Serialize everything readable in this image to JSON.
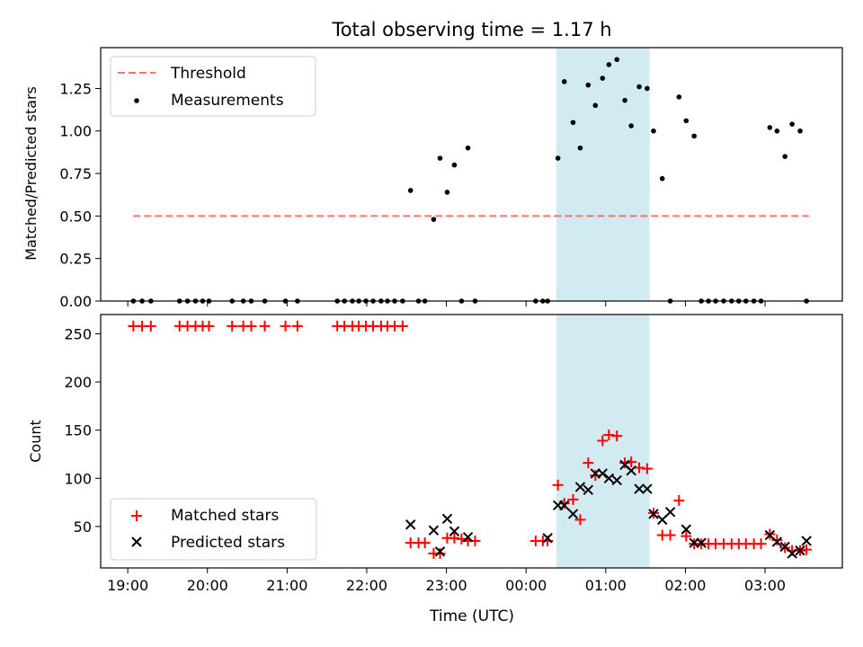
{
  "title": "Total observing time = 1.17 h",
  "xlabel": "Time (UTC)",
  "x_ticks": [
    "19:00",
    "20:00",
    "21:00",
    "22:00",
    "23:00",
    "00:00",
    "01:00",
    "02:00",
    "03:00"
  ],
  "x_tick_hours": [
    0,
    1,
    2,
    3,
    4,
    5,
    6,
    7,
    8
  ],
  "x_origin": "19:00",
  "x_range_hours": [
    -0.34,
    8.97
  ],
  "highlight_range_hours": [
    5.38,
    6.55
  ],
  "highlight_color": "#add8e6",
  "chart_data": [
    {
      "type": "scatter",
      "ylabel": "Matched/Predicted stars",
      "ylim": [
        0,
        1.49
      ],
      "y_ticks": [
        "0.00",
        "0.25",
        "0.50",
        "0.75",
        "1.00",
        "1.25"
      ],
      "y_tick_values": [
        0,
        0.25,
        0.5,
        0.75,
        1.0,
        1.25
      ],
      "legend_position": "top-left",
      "threshold": {
        "name": "Threshold",
        "value": 0.5,
        "x_range": [
          0.07,
          8.55
        ],
        "color": "#ff7070",
        "style": "dashed"
      },
      "series": [
        {
          "name": "Measurements",
          "color": "#000000",
          "x": [
            0.07,
            0.18,
            0.29,
            0.65,
            0.75,
            0.85,
            0.94,
            1.02,
            1.31,
            1.45,
            1.55,
            1.72,
            1.98,
            2.13,
            2.63,
            2.72,
            2.82,
            2.9,
            2.99,
            3.08,
            3.18,
            3.26,
            3.35,
            3.45,
            3.55,
            3.65,
            3.73,
            3.84,
            3.92,
            4.01,
            4.1,
            4.19,
            4.27,
            4.36,
            5.12,
            5.21,
            5.27,
            5.4,
            5.48,
            5.59,
            5.68,
            5.78,
            5.87,
            5.96,
            6.04,
            6.14,
            6.24,
            6.32,
            6.42,
            6.52,
            6.6,
            6.71,
            6.81,
            6.92,
            7.01,
            7.11,
            7.2,
            7.29,
            7.38,
            7.48,
            7.58,
            7.67,
            7.76,
            7.86,
            7.95,
            8.06,
            8.15,
            8.25,
            8.34,
            8.44,
            8.52
          ],
          "y": [
            0,
            0,
            0,
            0,
            0,
            0,
            0,
            0,
            0,
            0,
            0,
            0,
            0,
            0,
            0,
            0,
            0,
            0,
            0,
            0,
            0,
            0,
            0,
            0,
            0.65,
            0,
            0,
            0.48,
            0.84,
            0.64,
            0.8,
            0,
            0.9,
            0,
            0,
            0,
            0,
            0.84,
            1.29,
            1.05,
            0.9,
            1.27,
            1.15,
            1.31,
            1.39,
            1.42,
            1.18,
            1.03,
            1.26,
            1.25,
            1.0,
            0.72,
            0,
            1.2,
            1.06,
            0.97,
            0,
            0,
            0,
            0,
            0,
            0,
            0,
            0,
            0,
            1.02,
            1.0,
            0.85,
            1.04,
            1.0,
            0
          ]
        }
      ]
    },
    {
      "type": "scatter",
      "ylabel": "Count",
      "ylim": [
        7,
        270
      ],
      "y_ticks": [
        "50",
        "100",
        "150",
        "200",
        "250"
      ],
      "y_tick_values": [
        50,
        100,
        150,
        200,
        250
      ],
      "legend_position": "bottom-left",
      "series": [
        {
          "name": "Matched stars",
          "marker": "plus",
          "color": "#ff0000",
          "x": [
            0.07,
            0.18,
            0.29,
            0.65,
            0.75,
            0.85,
            0.94,
            1.02,
            1.31,
            1.45,
            1.55,
            1.72,
            1.98,
            2.13,
            2.63,
            2.72,
            2.82,
            2.9,
            2.99,
            3.08,
            3.18,
            3.26,
            3.35,
            3.45,
            3.55,
            3.65,
            3.73,
            3.84,
            3.92,
            4.01,
            4.1,
            4.19,
            4.27,
            4.36,
            5.12,
            5.21,
            5.27,
            5.4,
            5.48,
            5.59,
            5.68,
            5.78,
            5.87,
            5.96,
            6.04,
            6.14,
            6.24,
            6.32,
            6.42,
            6.52,
            6.6,
            6.71,
            6.81,
            6.92,
            7.01,
            7.11,
            7.2,
            7.29,
            7.38,
            7.48,
            7.58,
            7.67,
            7.76,
            7.86,
            7.95,
            8.06,
            8.15,
            8.25,
            8.34,
            8.44,
            8.52
          ],
          "y": [
            258,
            258,
            258,
            258,
            258,
            258,
            258,
            258,
            258,
            258,
            258,
            258,
            258,
            258,
            258,
            258,
            258,
            258,
            258,
            258,
            258,
            258,
            258,
            258,
            33,
            33,
            33,
            22,
            22,
            38,
            38,
            37,
            35,
            35,
            35,
            35,
            35,
            93,
            74,
            78,
            57,
            116,
            103,
            139,
            145,
            144,
            116,
            117,
            111,
            110,
            64,
            41,
            41,
            77,
            40,
            32,
            32,
            32,
            32,
            32,
            32,
            32,
            32,
            32,
            32,
            42,
            36,
            28,
            25,
            25,
            26
          ]
        },
        {
          "name": "Predicted stars",
          "marker": "x",
          "color": "#000000",
          "x": [
            3.55,
            3.84,
            3.92,
            4.01,
            4.1,
            4.27,
            5.27,
            5.4,
            5.48,
            5.59,
            5.68,
            5.78,
            5.87,
            5.96,
            6.04,
            6.14,
            6.24,
            6.32,
            6.42,
            6.52,
            6.6,
            6.71,
            6.81,
            7.01,
            7.11,
            7.2,
            8.06,
            8.15,
            8.25,
            8.34,
            8.44,
            8.52
          ],
          "y": [
            52,
            46,
            24,
            58,
            45,
            39,
            38,
            72,
            72,
            63,
            91,
            88,
            105,
            105,
            100,
            98,
            114,
            108,
            89,
            89,
            63,
            57,
            65,
            47,
            33,
            33,
            41,
            34,
            29,
            22,
            25,
            35
          ]
        }
      ]
    }
  ]
}
